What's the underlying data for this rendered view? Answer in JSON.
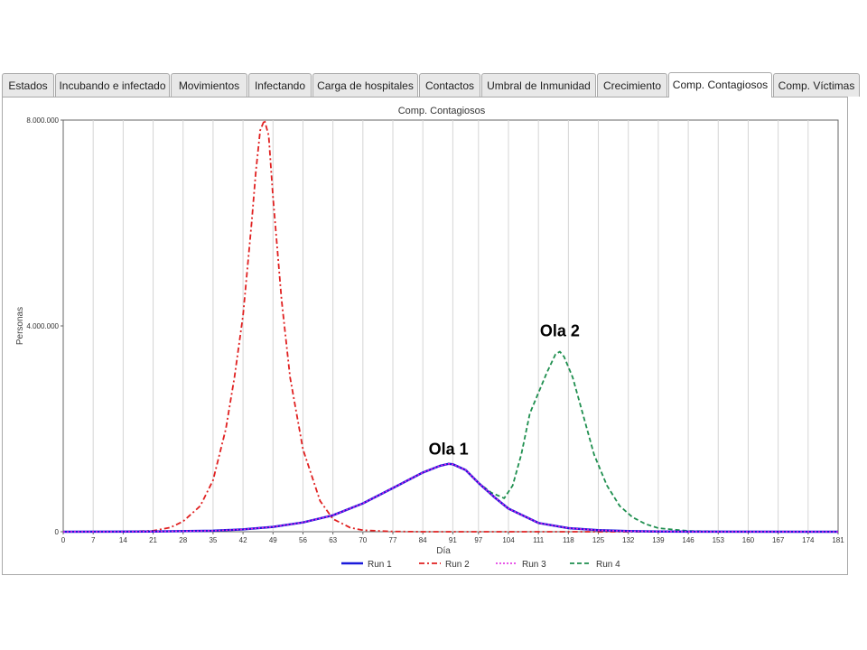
{
  "tabs": [
    {
      "label": "Estados",
      "active": false
    },
    {
      "label": "Incubando e infectado",
      "active": false
    },
    {
      "label": "Movimientos",
      "active": false
    },
    {
      "label": "Infectando",
      "active": false
    },
    {
      "label": "Carga de hospitales",
      "active": false
    },
    {
      "label": "Contactos",
      "active": false
    },
    {
      "label": "Umbral de Inmunidad",
      "active": false
    },
    {
      "label": "Crecimiento",
      "active": false
    },
    {
      "label": "Comp. Contagiosos",
      "active": true
    },
    {
      "label": "Comp. Víctimas",
      "active": false
    }
  ],
  "chart_data": {
    "type": "line",
    "title": "Comp. Contagiosos",
    "xlabel": "Día",
    "ylabel": "Personas",
    "xlim": [
      0,
      181
    ],
    "ylim": [
      0,
      8000000
    ],
    "x_ticks": [
      0,
      7,
      14,
      21,
      28,
      35,
      42,
      49,
      56,
      63,
      70,
      77,
      84,
      91,
      97,
      104,
      111,
      118,
      125,
      132,
      139,
      146,
      153,
      160,
      167,
      174,
      181
    ],
    "y_ticks": [
      {
        "value": 0,
        "label": "0"
      },
      {
        "value": 4000000,
        "label": "4.000.000"
      },
      {
        "value": 8000000,
        "label": "8.000.000"
      }
    ],
    "grid": "vertical",
    "legend": "bottom",
    "series": [
      {
        "name": "Run 1",
        "color": "#1a1adb",
        "dash": "solid",
        "width": 2.5,
        "points": [
          [
            0,
            0
          ],
          [
            21,
            3000
          ],
          [
            35,
            20000
          ],
          [
            42,
            45000
          ],
          [
            49,
            95000
          ],
          [
            56,
            180000
          ],
          [
            63,
            320000
          ],
          [
            70,
            550000
          ],
          [
            77,
            850000
          ],
          [
            84,
            1150000
          ],
          [
            88,
            1280000
          ],
          [
            90,
            1320000
          ],
          [
            91,
            1310000
          ],
          [
            94,
            1200000
          ],
          [
            97,
            950000
          ],
          [
            101,
            650000
          ],
          [
            104,
            450000
          ],
          [
            111,
            170000
          ],
          [
            118,
            70000
          ],
          [
            125,
            30000
          ],
          [
            132,
            12000
          ],
          [
            139,
            5000
          ],
          [
            146,
            2000
          ],
          [
            181,
            0
          ]
        ]
      },
      {
        "name": "Run 2",
        "color": "#e02020",
        "dash": "6,3,2,3",
        "width": 1.8,
        "points": [
          [
            0,
            0
          ],
          [
            14,
            2000
          ],
          [
            21,
            20000
          ],
          [
            25,
            80000
          ],
          [
            28,
            200000
          ],
          [
            32,
            500000
          ],
          [
            35,
            1000000
          ],
          [
            38,
            2000000
          ],
          [
            40,
            3000000
          ],
          [
            42,
            4200000
          ],
          [
            44,
            6000000
          ],
          [
            45,
            7000000
          ],
          [
            46,
            7800000
          ],
          [
            47,
            8000000
          ],
          [
            48,
            7700000
          ],
          [
            49,
            6500000
          ],
          [
            51,
            4500000
          ],
          [
            53,
            3000000
          ],
          [
            56,
            1600000
          ],
          [
            60,
            600000
          ],
          [
            63,
            250000
          ],
          [
            67,
            80000
          ],
          [
            70,
            30000
          ],
          [
            77,
            5000
          ],
          [
            84,
            0
          ],
          [
            181,
            0
          ]
        ]
      },
      {
        "name": "Run 3",
        "color": "#e020e0",
        "dash": "2,2",
        "width": 1.6,
        "points": [
          [
            0,
            0
          ],
          [
            21,
            3000
          ],
          [
            35,
            20000
          ],
          [
            42,
            45000
          ],
          [
            49,
            95000
          ],
          [
            56,
            180000
          ],
          [
            63,
            320000
          ],
          [
            70,
            550000
          ],
          [
            77,
            850000
          ],
          [
            84,
            1150000
          ],
          [
            88,
            1280000
          ],
          [
            90,
            1320000
          ],
          [
            91,
            1310000
          ],
          [
            94,
            1200000
          ],
          [
            97,
            950000
          ],
          [
            101,
            650000
          ],
          [
            104,
            450000
          ],
          [
            111,
            170000
          ],
          [
            118,
            70000
          ],
          [
            125,
            30000
          ],
          [
            132,
            12000
          ],
          [
            139,
            5000
          ],
          [
            146,
            2000
          ],
          [
            181,
            0
          ]
        ]
      },
      {
        "name": "Run 4",
        "color": "#1f8f4f",
        "dash": "5,3",
        "width": 1.8,
        "points": [
          [
            0,
            0
          ],
          [
            21,
            3000
          ],
          [
            35,
            20000
          ],
          [
            42,
            45000
          ],
          [
            49,
            95000
          ],
          [
            56,
            180000
          ],
          [
            63,
            320000
          ],
          [
            70,
            550000
          ],
          [
            77,
            850000
          ],
          [
            84,
            1150000
          ],
          [
            88,
            1280000
          ],
          [
            90,
            1320000
          ],
          [
            91,
            1310000
          ],
          [
            94,
            1200000
          ],
          [
            97,
            950000
          ],
          [
            100,
            760000
          ],
          [
            103,
            650000
          ],
          [
            105,
            900000
          ],
          [
            107,
            1500000
          ],
          [
            109,
            2300000
          ],
          [
            111,
            2700000
          ],
          [
            113,
            3100000
          ],
          [
            115,
            3450000
          ],
          [
            116,
            3500000
          ],
          [
            117,
            3400000
          ],
          [
            119,
            3000000
          ],
          [
            121,
            2400000
          ],
          [
            124,
            1500000
          ],
          [
            127,
            900000
          ],
          [
            130,
            500000
          ],
          [
            133,
            280000
          ],
          [
            136,
            150000
          ],
          [
            139,
            70000
          ],
          [
            146,
            15000
          ],
          [
            153,
            3000
          ],
          [
            160,
            0
          ],
          [
            181,
            0
          ]
        ]
      }
    ],
    "annotations": [
      {
        "text": "Ola 1",
        "x": 90,
        "y": 1500000
      },
      {
        "text": "Ola 2",
        "x": 116,
        "y": 3800000
      }
    ]
  }
}
